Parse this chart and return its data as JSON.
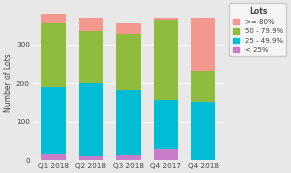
{
  "categories": [
    "Q1 2018",
    "Q2 2018",
    "Q3 2018",
    "Q4 2017",
    "Q4 2018"
  ],
  "lt25": [
    15,
    10,
    12,
    30,
    0
  ],
  "p25_49": [
    175,
    190,
    170,
    125,
    150
  ],
  "p50_79": [
    165,
    135,
    145,
    210,
    80
  ],
  "ge80": [
    25,
    35,
    30,
    5,
    140
  ],
  "colors": {
    "lt25": "#c77dca",
    "p25_49": "#00bcd4",
    "p50_79": "#8fbc3f",
    "ge80": "#f4978e"
  },
  "legend_labels": [
    ">= 80%",
    "50 - 79.9%",
    "25 - 49.9%",
    "< 25%"
  ],
  "legend_title": "Lots",
  "ylabel": "Number of Lots",
  "ylim": [
    0,
    400
  ],
  "yticks": [
    0,
    100,
    200,
    300
  ],
  "background_color": "#e8e8e8",
  "panel_background": "#e8e8e8",
  "grid_color": "#ffffff",
  "bar_width": 0.65
}
